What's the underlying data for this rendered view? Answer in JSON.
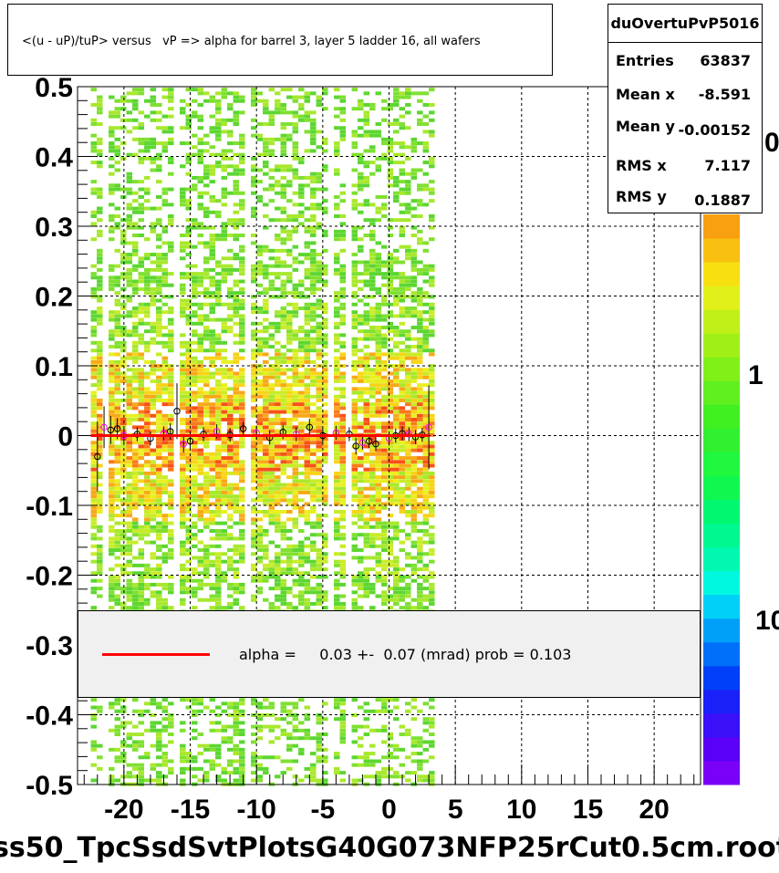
{
  "title": "<(u - uP)/tuP> versus   vP => alpha for barrel 3, layer 5 ladder 16, all wafers",
  "stats": {
    "name": "duOvertuPvP5016",
    "rows": [
      {
        "label": "Entries",
        "value": "63837"
      },
      {
        "label": "Mean x",
        "value": "-8.591"
      },
      {
        "label": "Mean y",
        "value": "-0.00152"
      },
      {
        "label": "RMS x",
        "value": "7.117"
      },
      {
        "label": "RMS y",
        "value": "0.1887"
      }
    ]
  },
  "legend": {
    "text": "alpha =     0.03 +-  0.07 (mrad) prob = 0.103",
    "line_color": "#ff0000"
  },
  "footer": "ss50_TpcSsdSvtPlotsG40G073NFP25rCut0.5cm.root",
  "colors": {
    "fit_line": "#ff0000",
    "marker_black": "#000000",
    "marker_magenta": "#ff00ff",
    "marker_green": "#00a000"
  },
  "chart_data": {
    "type": "heatmap",
    "xlim": [
      -23.5,
      23.5
    ],
    "ylim": [
      -0.5,
      0.5
    ],
    "x_ticks": [
      -20,
      -15,
      -10,
      -5,
      0,
      5,
      10,
      15,
      20
    ],
    "x_tick_labels": [
      "-20",
      "-15",
      "-10",
      "-5",
      "0",
      "5",
      "10",
      "15",
      "20"
    ],
    "y_ticks": [
      -0.5,
      -0.4,
      -0.3,
      -0.2,
      -0.1,
      0,
      0.1,
      0.2,
      0.3,
      0.4,
      0.5
    ],
    "y_tick_labels": [
      "-0.5",
      "-0.4",
      "-0.3",
      "-0.2",
      "-0.1",
      "0",
      "0.1",
      "0.2",
      "0.3",
      "0.4",
      "0.5"
    ],
    "grid": true,
    "data_x_range": [
      -22.5,
      3.0
    ],
    "colorbar_labels": [
      "0",
      "1",
      "10"
    ],
    "fit": {
      "x": [
        -22.5,
        3.0
      ],
      "y": [
        0.0,
        0.0
      ],
      "color": "#ff0000"
    },
    "profile_points": [
      {
        "x": -22.0,
        "y": -0.03,
        "err": 0.05
      },
      {
        "x": -21.5,
        "y": 0.012,
        "err": 0.03
      },
      {
        "x": -21.0,
        "y": 0.008,
        "err": 0.02
      },
      {
        "x": -20.5,
        "y": 0.01,
        "err": 0.015
      },
      {
        "x": -20.0,
        "y": 0.0,
        "err": 0.01
      },
      {
        "x": -19.0,
        "y": 0.002,
        "err": 0.01
      },
      {
        "x": -18.0,
        "y": -0.004,
        "err": 0.01
      },
      {
        "x": -17.0,
        "y": 0.003,
        "err": 0.01
      },
      {
        "x": -16.5,
        "y": 0.006,
        "err": 0.012
      },
      {
        "x": -16.0,
        "y": 0.035,
        "err": 0.04
      },
      {
        "x": -15.5,
        "y": -0.012,
        "err": 0.012
      },
      {
        "x": -15.0,
        "y": -0.008,
        "err": 0.01
      },
      {
        "x": -14.0,
        "y": 0.002,
        "err": 0.01
      },
      {
        "x": -13.0,
        "y": 0.006,
        "err": 0.01
      },
      {
        "x": -12.0,
        "y": 0.001,
        "err": 0.01
      },
      {
        "x": -11.0,
        "y": 0.01,
        "err": 0.01
      },
      {
        "x": -10.0,
        "y": 0.004,
        "err": 0.01
      },
      {
        "x": -9.0,
        "y": -0.003,
        "err": 0.01
      },
      {
        "x": -8.0,
        "y": 0.005,
        "err": 0.01
      },
      {
        "x": -7.0,
        "y": 0.002,
        "err": 0.01
      },
      {
        "x": -6.0,
        "y": 0.012,
        "err": 0.012
      },
      {
        "x": -5.0,
        "y": 0.0,
        "err": 0.01
      },
      {
        "x": -4.0,
        "y": 0.004,
        "err": 0.01
      },
      {
        "x": -3.0,
        "y": 0.002,
        "err": 0.01
      },
      {
        "x": -2.5,
        "y": -0.015,
        "err": 0.012
      },
      {
        "x": -2.0,
        "y": -0.01,
        "err": 0.01
      },
      {
        "x": -1.5,
        "y": -0.008,
        "err": 0.01
      },
      {
        "x": -1.0,
        "y": -0.012,
        "err": 0.01
      },
      {
        "x": 0.0,
        "y": -0.004,
        "err": 0.01
      },
      {
        "x": 0.5,
        "y": 0.0,
        "err": 0.01
      },
      {
        "x": 1.0,
        "y": 0.003,
        "err": 0.01
      },
      {
        "x": 1.5,
        "y": 0.002,
        "err": 0.01
      },
      {
        "x": 2.0,
        "y": -0.002,
        "err": 0.01
      },
      {
        "x": 2.5,
        "y": 0.001,
        "err": 0.01
      },
      {
        "x": 3.0,
        "y": 0.012,
        "err": 0.06
      }
    ]
  }
}
